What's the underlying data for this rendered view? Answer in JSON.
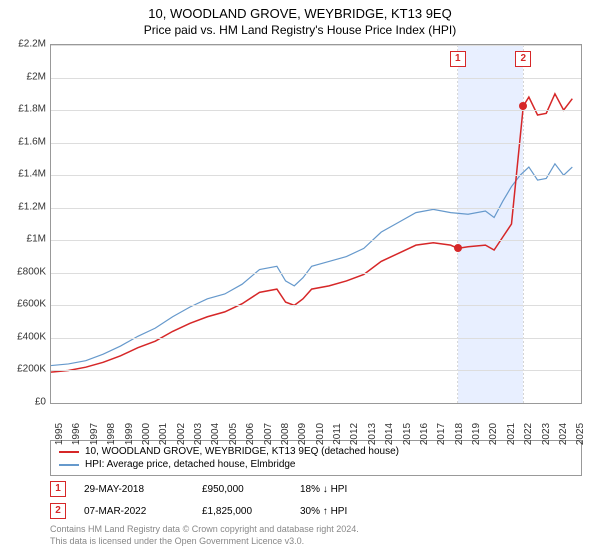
{
  "title": "10, WOODLAND GROVE, WEYBRIDGE, KT13 9EQ",
  "subtitle": "Price paid vs. HM Land Registry's House Price Index (HPI)",
  "chart": {
    "type": "line",
    "x_start": 1995,
    "x_end": 2025.5,
    "y_min": 0,
    "y_max": 2200000,
    "y_ticks": [
      0,
      200000,
      400000,
      600000,
      800000,
      1000000,
      1200000,
      1400000,
      1600000,
      1800000,
      2000000,
      2200000
    ],
    "y_tick_labels": [
      "£0",
      "£200K",
      "£400K",
      "£600K",
      "£800K",
      "£1M",
      "£1.2M",
      "£1.4M",
      "£1.6M",
      "£1.8M",
      "£2M",
      "£2.2M"
    ],
    "x_ticks": [
      1995,
      1996,
      1997,
      1998,
      1999,
      2000,
      2001,
      2002,
      2003,
      2004,
      2005,
      2006,
      2007,
      2008,
      2009,
      2010,
      2011,
      2012,
      2013,
      2014,
      2015,
      2016,
      2017,
      2018,
      2019,
      2020,
      2021,
      2022,
      2023,
      2024,
      2025
    ],
    "grid_color": "#dddddd",
    "border_color": "#999999",
    "background_color": "#ffffff",
    "highlight": {
      "x_from": 2018.4,
      "x_to": 2022.18,
      "color": "rgba(100,150,255,0.15)"
    },
    "series": [
      {
        "name": "property",
        "label": "10, WOODLAND GROVE, WEYBRIDGE, KT13 9EQ (detached house)",
        "color": "#d62728",
        "width": 1.5,
        "points": [
          [
            1995,
            190000
          ],
          [
            1996,
            200000
          ],
          [
            1997,
            220000
          ],
          [
            1998,
            250000
          ],
          [
            1999,
            290000
          ],
          [
            2000,
            340000
          ],
          [
            2001,
            380000
          ],
          [
            2002,
            440000
          ],
          [
            2003,
            490000
          ],
          [
            2004,
            530000
          ],
          [
            2005,
            560000
          ],
          [
            2006,
            610000
          ],
          [
            2007,
            680000
          ],
          [
            2008,
            700000
          ],
          [
            2008.5,
            620000
          ],
          [
            2009,
            600000
          ],
          [
            2009.5,
            640000
          ],
          [
            2010,
            700000
          ],
          [
            2011,
            720000
          ],
          [
            2012,
            750000
          ],
          [
            2013,
            790000
          ],
          [
            2014,
            870000
          ],
          [
            2015,
            920000
          ],
          [
            2016,
            970000
          ],
          [
            2017,
            985000
          ],
          [
            2018,
            970000
          ],
          [
            2018.41,
            950000
          ],
          [
            2019,
            960000
          ],
          [
            2020,
            970000
          ],
          [
            2020.5,
            940000
          ],
          [
            2021,
            1020000
          ],
          [
            2021.5,
            1100000
          ],
          [
            2022.18,
            1825000
          ],
          [
            2022.5,
            1880000
          ],
          [
            2023,
            1770000
          ],
          [
            2023.5,
            1780000
          ],
          [
            2024,
            1900000
          ],
          [
            2024.5,
            1800000
          ],
          [
            2025,
            1870000
          ]
        ]
      },
      {
        "name": "hpi",
        "label": "HPI: Average price, detached house, Elmbridge",
        "color": "#6699cc",
        "width": 1.2,
        "points": [
          [
            1995,
            230000
          ],
          [
            1996,
            240000
          ],
          [
            1997,
            260000
          ],
          [
            1998,
            300000
          ],
          [
            1999,
            350000
          ],
          [
            2000,
            410000
          ],
          [
            2001,
            460000
          ],
          [
            2002,
            530000
          ],
          [
            2003,
            590000
          ],
          [
            2004,
            640000
          ],
          [
            2005,
            670000
          ],
          [
            2006,
            730000
          ],
          [
            2007,
            820000
          ],
          [
            2008,
            840000
          ],
          [
            2008.5,
            750000
          ],
          [
            2009,
            720000
          ],
          [
            2009.5,
            770000
          ],
          [
            2010,
            840000
          ],
          [
            2011,
            870000
          ],
          [
            2012,
            900000
          ],
          [
            2013,
            950000
          ],
          [
            2014,
            1050000
          ],
          [
            2015,
            1110000
          ],
          [
            2016,
            1170000
          ],
          [
            2017,
            1190000
          ],
          [
            2018,
            1170000
          ],
          [
            2019,
            1160000
          ],
          [
            2020,
            1180000
          ],
          [
            2020.5,
            1140000
          ],
          [
            2021,
            1240000
          ],
          [
            2021.5,
            1330000
          ],
          [
            2022,
            1400000
          ],
          [
            2022.5,
            1450000
          ],
          [
            2023,
            1370000
          ],
          [
            2023.5,
            1380000
          ],
          [
            2024,
            1470000
          ],
          [
            2024.5,
            1400000
          ],
          [
            2025,
            1450000
          ]
        ]
      }
    ],
    "sale_markers": [
      {
        "n": "1",
        "x": 2018.41,
        "y": 950000,
        "color": "#d62728"
      },
      {
        "n": "2",
        "x": 2022.18,
        "y": 1825000,
        "color": "#d62728"
      }
    ]
  },
  "legend": {
    "items": [
      {
        "color": "#d62728",
        "label": "10, WOODLAND GROVE, WEYBRIDGE, KT13 9EQ (detached house)"
      },
      {
        "color": "#6699cc",
        "label": "HPI: Average price, detached house, Elmbridge"
      }
    ]
  },
  "sales": [
    {
      "n": "1",
      "color": "#d62728",
      "date": "29-MAY-2018",
      "price": "£950,000",
      "diff": "18% ↓ HPI"
    },
    {
      "n": "2",
      "color": "#d62728",
      "date": "07-MAR-2022",
      "price": "£1,825,000",
      "diff": "30% ↑ HPI"
    }
  ],
  "footnote_line1": "Contains HM Land Registry data © Crown copyright and database right 2024.",
  "footnote_line2": "This data is licensed under the Open Government Licence v3.0."
}
